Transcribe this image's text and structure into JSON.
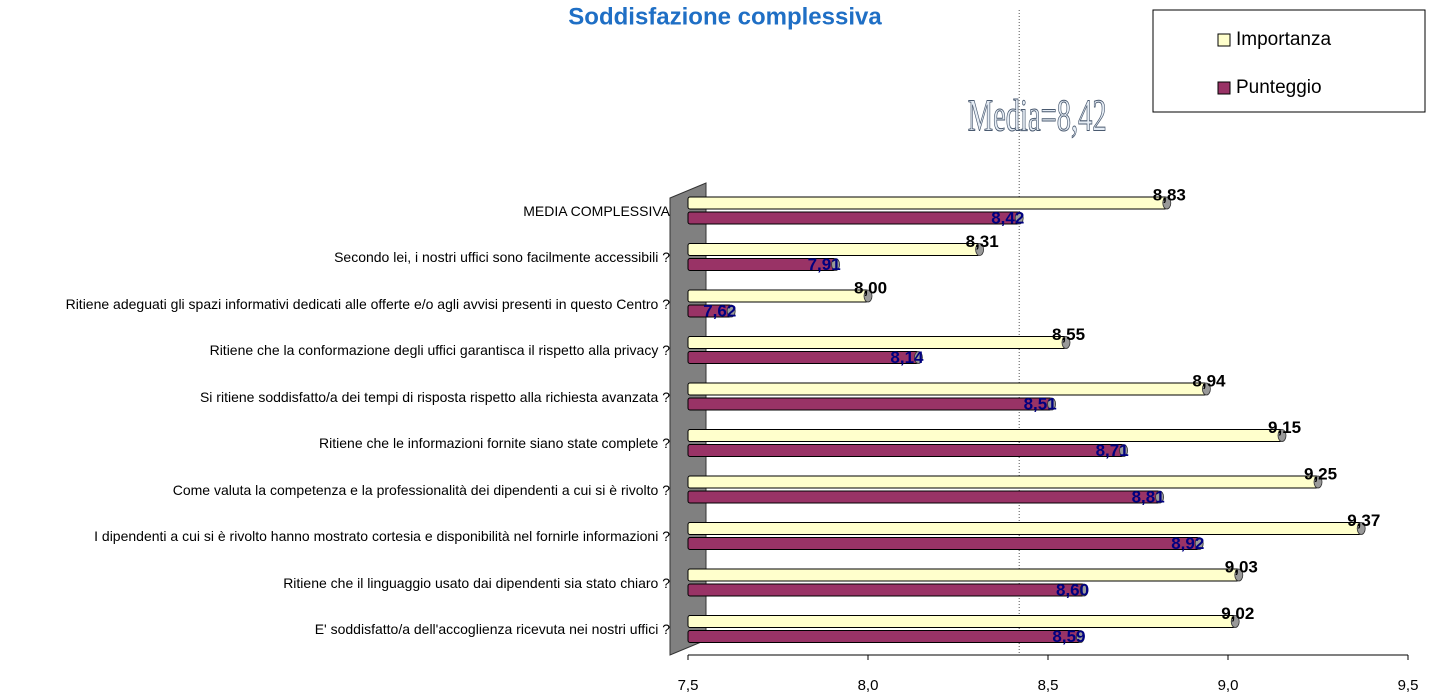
{
  "chart_data": {
    "type": "hbar",
    "title": "Soddisfazione complessiva",
    "categories": [
      "MEDIA COMPLESSIVA",
      "Secondo lei, i nostri uffici sono facilmente accessibili ?",
      "Ritiene adeguati gli spazi informativi dedicati alle offerte e/o agli avvisi presenti in questo Centro ?",
      "Ritiene che la conformazione degli uffici garantisca il rispetto alla privacy ?",
      "Si ritiene soddisfatto/a dei tempi di risposta rispetto alla richiesta avanzata ?",
      "Ritiene che le informazioni fornite siano state complete ?",
      "Come valuta la competenza e la professionalità dei dipendenti a cui si è rivolto ?",
      "I dipendenti a cui si è rivolto hanno mostrato cortesia e disponibilità nel fornirle informazioni ?",
      "Ritiene che il linguaggio usato dai dipendenti sia stato chiaro ?",
      "E' soddisfatto/a dell'accoglienza ricevuta nei nostri uffici ?"
    ],
    "series": [
      {
        "name": "Importanza",
        "color": "#ffffcc",
        "label_color": "#000000",
        "values": [
          8.83,
          8.31,
          8.0,
          8.55,
          8.94,
          9.15,
          9.25,
          9.37,
          9.03,
          9.02
        ],
        "value_labels": [
          "8,83",
          "8,31",
          "8,00",
          "8,55",
          "8,94",
          "9,15",
          "9,25",
          "9,37",
          "9,03",
          "9,02"
        ]
      },
      {
        "name": "Punteggio",
        "color": "#993366",
        "label_color": "#000080",
        "values": [
          8.42,
          7.91,
          7.62,
          8.14,
          8.51,
          8.71,
          8.81,
          8.92,
          8.6,
          8.59
        ],
        "value_labels": [
          "8,42",
          "7,91",
          "7,62",
          "8,14",
          "8,51",
          "8,71",
          "8,81",
          "8,92",
          "8,60",
          "8,59"
        ]
      }
    ],
    "xlim": [
      7.5,
      9.5
    ],
    "xticks": [
      {
        "value": 7.5,
        "label": "7,5"
      },
      {
        "value": 8.0,
        "label": "8,0"
      },
      {
        "value": 8.5,
        "label": "8,5"
      },
      {
        "value": 9.0,
        "label": "9,0"
      },
      {
        "value": 9.5,
        "label": "9,5"
      }
    ],
    "reference_line": {
      "value": 8.42,
      "label": "Media=8,42"
    },
    "legend": "top-right"
  }
}
